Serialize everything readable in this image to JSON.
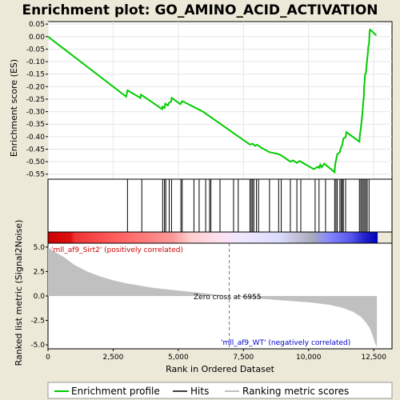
{
  "title": "Enrichment plot: GO_AMINO_ACID_ACTIVATION",
  "chart_data": {
    "type": "line",
    "es_panel": {
      "ylabel": "Enrichment score (ES)",
      "ylim": [
        -0.57,
        0.06
      ],
      "yticks": [
        "0.05",
        "0.00",
        "-0.05",
        "-0.10",
        "-0.15",
        "-0.20",
        "-0.25",
        "-0.30",
        "-0.35",
        "-0.40",
        "-0.45",
        "-0.50",
        "-0.55"
      ],
      "ytick_values": [
        0.05,
        0.0,
        -0.05,
        -0.1,
        -0.15,
        -0.2,
        -0.25,
        -0.3,
        -0.35,
        -0.4,
        -0.45,
        -0.5,
        -0.55
      ],
      "curve_color": "#00cc00",
      "points": [
        [
          0,
          0.0
        ],
        [
          3000,
          -0.24
        ],
        [
          3050,
          -0.215
        ],
        [
          3550,
          -0.245
        ],
        [
          3570,
          -0.232
        ],
        [
          4380,
          -0.29
        ],
        [
          4400,
          -0.28
        ],
        [
          4470,
          -0.285
        ],
        [
          4500,
          -0.268
        ],
        [
          4600,
          -0.275
        ],
        [
          4640,
          -0.265
        ],
        [
          4720,
          -0.26
        ],
        [
          4750,
          -0.245
        ],
        [
          5080,
          -0.27
        ],
        [
          5150,
          -0.258
        ],
        [
          5950,
          -0.3
        ],
        [
          7750,
          -0.432
        ],
        [
          7850,
          -0.428
        ],
        [
          7950,
          -0.437
        ],
        [
          8020,
          -0.432
        ],
        [
          8200,
          -0.445
        ],
        [
          8500,
          -0.462
        ],
        [
          8850,
          -0.47
        ],
        [
          8950,
          -0.475
        ],
        [
          9300,
          -0.5
        ],
        [
          9400,
          -0.495
        ],
        [
          9550,
          -0.505
        ],
        [
          9650,
          -0.497
        ],
        [
          10200,
          -0.53
        ],
        [
          10350,
          -0.52
        ],
        [
          10400,
          -0.525
        ],
        [
          10450,
          -0.512
        ],
        [
          10500,
          -0.523
        ],
        [
          10600,
          -0.508
        ],
        [
          11000,
          -0.542
        ],
        [
          11020,
          -0.51
        ],
        [
          11060,
          -0.49
        ],
        [
          11100,
          -0.47
        ],
        [
          11200,
          -0.462
        ],
        [
          11220,
          -0.45
        ],
        [
          11300,
          -0.43
        ],
        [
          11330,
          -0.408
        ],
        [
          11420,
          -0.402
        ],
        [
          11450,
          -0.382
        ],
        [
          11950,
          -0.42
        ],
        [
          11970,
          -0.39
        ],
        [
          12000,
          -0.37
        ],
        [
          12030,
          -0.34
        ],
        [
          12070,
          -0.3
        ],
        [
          12090,
          -0.27
        ],
        [
          12120,
          -0.24
        ],
        [
          12130,
          -0.2
        ],
        [
          12150,
          -0.18
        ],
        [
          12170,
          -0.15
        ],
        [
          12200,
          -0.145
        ],
        [
          12240,
          -0.1
        ],
        [
          12280,
          -0.06
        ],
        [
          12290,
          -0.04
        ],
        [
          12320,
          -0.03
        ],
        [
          12340,
          0.02
        ],
        [
          12360,
          0.028
        ],
        [
          12600,
          0.005
        ]
      ]
    },
    "hits": [
      3050,
      3600,
      4400,
      4470,
      4520,
      4650,
      4740,
      5100,
      5150,
      5600,
      5800,
      6050,
      6200,
      6250,
      6600,
      7120,
      7300,
      7750,
      7800,
      7850,
      7900,
      8000,
      8080,
      8500,
      8850,
      8950,
      9300,
      9550,
      9700,
      10250,
      10400,
      10650,
      11000,
      11050,
      11100,
      11200,
      11250,
      11300,
      11330,
      11420,
      11950,
      12000,
      12050,
      12100,
      12150,
      12200,
      12250,
      12320
    ],
    "metric_panel": {
      "ylabel": "Ranked list metric (Signal2Noise)",
      "ylim": [
        -5.4,
        5.4
      ],
      "yticks": [
        "5.0",
        "2.5",
        "0.0",
        "-2.5",
        "-5.0"
      ],
      "ytick_values": [
        5.0,
        2.5,
        0.0,
        -2.5,
        -5.0
      ],
      "fill_color": "#c0c0c0",
      "points": [
        [
          0,
          5.0
        ],
        [
          200,
          4.6
        ],
        [
          600,
          4.0
        ],
        [
          1000,
          3.2
        ],
        [
          1500,
          2.5
        ],
        [
          2000,
          2.0
        ],
        [
          2500,
          1.6
        ],
        [
          3000,
          1.3
        ],
        [
          4000,
          0.85
        ],
        [
          5000,
          0.55
        ],
        [
          6000,
          0.28
        ],
        [
          6955,
          0.0
        ],
        [
          8000,
          -0.25
        ],
        [
          9000,
          -0.45
        ],
        [
          10000,
          -0.65
        ],
        [
          10800,
          -0.9
        ],
        [
          11300,
          -1.2
        ],
        [
          11700,
          -1.6
        ],
        [
          12000,
          -2.1
        ],
        [
          12200,
          -2.7
        ],
        [
          12350,
          -3.3
        ],
        [
          12450,
          -4.0
        ],
        [
          12550,
          -4.8
        ],
        [
          12620,
          -5.2
        ]
      ],
      "positive_label": "'mll_af9_Sirt2' (positively correlated)",
      "negative_label": "'mll_af9_WT' (negatively correlated)",
      "zero_cross_label": "Zero cross at 6955",
      "zero_cross": 6955,
      "positive_color": "#cc0000",
      "negative_color": "#0000cc"
    },
    "xlabel": "Rank in Ordered Dataset",
    "xlim": [
      0,
      13200
    ],
    "xticks": [
      "0",
      "2,500",
      "5,000",
      "7,500",
      "10,000",
      "12,500"
    ],
    "xtick_values": [
      0,
      2500,
      5000,
      7500,
      10000,
      12500
    ],
    "n_genes": 12650,
    "legend": [
      "Enrichment profile",
      "Hits",
      "Ranking metric scores"
    ],
    "legend_colors": {
      "profile": "#00cc00",
      "hits": "#000000",
      "metric": "#c0c0c0"
    }
  }
}
